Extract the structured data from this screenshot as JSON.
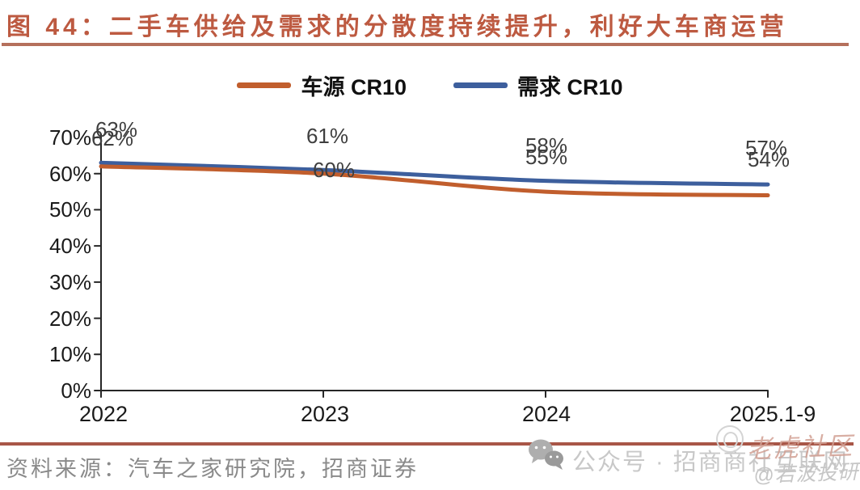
{
  "title": "图 44：二手车供给及需求的分散度持续提升，利好大车商运营",
  "chart_data": {
    "type": "line",
    "title": "二手车供给及需求的分散度持续提升，利好大车商运营",
    "categories": [
      "2022",
      "2023",
      "2024",
      "2025.1-9"
    ],
    "y_ticks": [
      "0%",
      "10%",
      "20%",
      "30%",
      "40%",
      "50%",
      "60%",
      "70%"
    ],
    "ylim": [
      0,
      70
    ],
    "grid": false,
    "legend_position": "top-center",
    "series": [
      {
        "name": "车源 CR10",
        "color": "#c15e2d",
        "values": [
          62,
          60,
          55,
          54
        ],
        "point_labels": [
          "62%",
          "60%",
          "55%",
          "54%"
        ]
      },
      {
        "name": "需求 CR10",
        "color": "#3d5f9d",
        "values": [
          63,
          61,
          58,
          57
        ],
        "point_labels": [
          "63%",
          "61%",
          "58%",
          "57%"
        ]
      }
    ]
  },
  "footer": {
    "source_text": "资料来源：汽车之家研究院，招商证券",
    "account_text": "公众号 · 招商商社互联网",
    "watermark_name": "老虎社区",
    "watermark_handle": "@若波投研"
  },
  "colors": {
    "accent_red": "#b5604a",
    "axis": "#262626",
    "line_orange": "#c15e2d",
    "line_blue": "#3d5f9d"
  }
}
